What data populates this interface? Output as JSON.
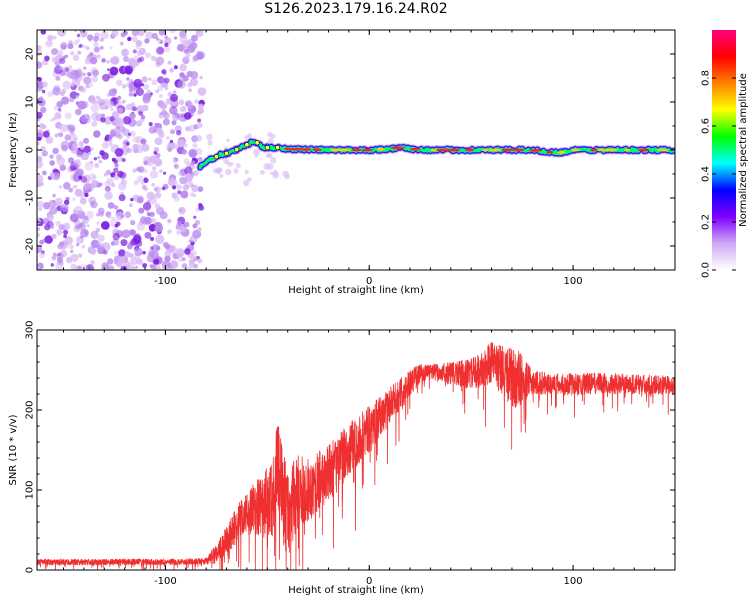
{
  "title": "S126.2023.179.16.24.R02",
  "colors": {
    "snr_line": "#f03030",
    "trace_outline": "#000000",
    "noise_light": "#d9b8f5",
    "noise_mid": "#b98bef",
    "noise_dark": "#7a1ee0"
  },
  "chart_data": [
    {
      "type": "heatmap",
      "name": "spectrogram",
      "xlabel": "Height of straight line (km)",
      "ylabel": "Frequency (Hz)",
      "xlim": [
        -163,
        150
      ],
      "ylim": [
        -25,
        25
      ],
      "xticks": [
        -100,
        0,
        100
      ],
      "xtick_labels": [
        "-100",
        "0",
        "100"
      ],
      "yticks": [
        -20,
        -10,
        0,
        10,
        20
      ],
      "ytick_labels": [
        "-20",
        "-10",
        "0",
        "10",
        "20"
      ],
      "colorbar": {
        "label": "Normalized spectral amplitude",
        "range": [
          0,
          1
        ],
        "ticks": [
          0.0,
          0.2,
          0.4,
          0.6,
          0.8
        ],
        "tick_labels": [
          "0.0",
          "0.2",
          "0.4",
          "0.6",
          "0.8"
        ],
        "colormap": [
          "#ffffff",
          "#cfa8f5",
          "#8000ff",
          "#0000ff",
          "#00ffff",
          "#00ff00",
          "#ffff00",
          "#ff8000",
          "#ff0000",
          "#ff0080"
        ]
      },
      "noise_region_x": [
        -163,
        -80
      ],
      "trace": {
        "x": [
          -83,
          -78,
          -73,
          -68,
          -63,
          -58,
          -55,
          -52,
          -48,
          -44,
          -40,
          -30,
          -20,
          -10,
          0,
          10,
          15,
          20,
          30,
          40,
          50,
          60,
          70,
          80,
          90,
          95,
          100,
          110,
          120,
          130,
          140,
          150
        ],
        "y": [
          -3.5,
          -2.0,
          -1.0,
          -0.5,
          0.5,
          1.5,
          1.5,
          0.5,
          0.5,
          0.5,
          0.2,
          0.1,
          0.0,
          0.0,
          0.0,
          0.2,
          0.5,
          0.2,
          0.0,
          0.0,
          0.0,
          0.0,
          0.0,
          0.0,
          -0.5,
          -0.5,
          0.0,
          0.0,
          0.0,
          0.0,
          0.0,
          0.0
        ]
      }
    },
    {
      "type": "line",
      "name": "snr",
      "xlabel": "Height of straight line (km)",
      "ylabel": "SNR (10 * v/v)",
      "xlim": [
        -163,
        150
      ],
      "ylim": [
        0,
        300
      ],
      "xticks": [
        -100,
        0,
        100
      ],
      "xtick_labels": [
        "-100",
        "0",
        "100"
      ],
      "yticks": [
        0,
        100,
        200,
        300
      ],
      "ytick_labels": [
        "0",
        "100",
        "200",
        "300"
      ],
      "envelope": {
        "x": [
          -163,
          -130,
          -100,
          -80,
          -76,
          -72,
          -68,
          -64,
          -60,
          -56,
          -52,
          -48,
          -45,
          -42,
          -40,
          -35,
          -30,
          -25,
          -20,
          -15,
          -10,
          -5,
          0,
          5,
          10,
          15,
          20,
          25,
          30,
          40,
          50,
          55,
          60,
          65,
          70,
          75,
          80,
          90,
          100,
          110,
          120,
          130,
          140,
          150
        ],
        "y": [
          10,
          10,
          10,
          11,
          18,
          30,
          45,
          60,
          70,
          75,
          80,
          90,
          130,
          90,
          70,
          95,
          100,
          110,
          120,
          135,
          150,
          165,
          175,
          190,
          205,
          220,
          235,
          245,
          248,
          245,
          245,
          250,
          260,
          250,
          240,
          238,
          235,
          232,
          232,
          233,
          233,
          232,
          232,
          230
        ]
      },
      "jitter": {
        "x": [
          -163,
          -80,
          -76,
          -60,
          -42,
          -30,
          0,
          30,
          55,
          65,
          72,
          80,
          150
        ],
        "y": [
          4,
          4,
          12,
          28,
          60,
          40,
          30,
          10,
          22,
          32,
          40,
          15,
          12
        ]
      }
    }
  ]
}
